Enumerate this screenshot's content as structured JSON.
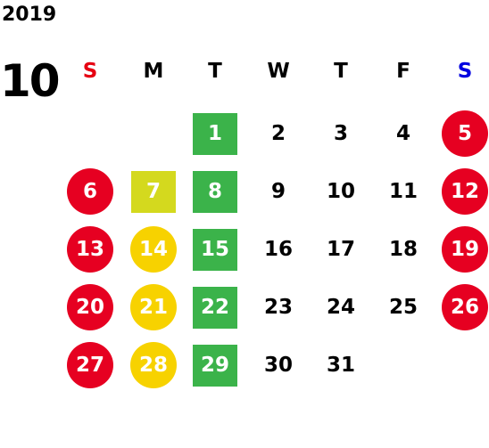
{
  "year": "2019",
  "month": "10",
  "weekdays": [
    {
      "label": "S",
      "color": "#e60012"
    },
    {
      "label": "M",
      "color": "#000000"
    },
    {
      "label": "T",
      "color": "#000000"
    },
    {
      "label": "W",
      "color": "#000000"
    },
    {
      "label": "T",
      "color": "#000000"
    },
    {
      "label": "F",
      "color": "#000000"
    },
    {
      "label": "S",
      "color": "#0000e0"
    }
  ],
  "weeks": [
    [
      null,
      null,
      {
        "day": "1",
        "shape": "square",
        "color": "#3bb34a"
      },
      {
        "day": "2"
      },
      {
        "day": "3"
      },
      {
        "day": "4"
      },
      {
        "day": "5",
        "shape": "circle",
        "color": "#e60021"
      }
    ],
    [
      {
        "day": "6",
        "shape": "circle",
        "color": "#e60021"
      },
      {
        "day": "7",
        "shape": "square",
        "color": "#d4d91e"
      },
      {
        "day": "8",
        "shape": "square",
        "color": "#3bb34a"
      },
      {
        "day": "9"
      },
      {
        "day": "10"
      },
      {
        "day": "11"
      },
      {
        "day": "12",
        "shape": "circle",
        "color": "#e60021"
      }
    ],
    [
      {
        "day": "13",
        "shape": "circle",
        "color": "#e60021"
      },
      {
        "day": "14",
        "shape": "circle",
        "color": "#f7d200"
      },
      {
        "day": "15",
        "shape": "square",
        "color": "#3bb34a"
      },
      {
        "day": "16"
      },
      {
        "day": "17"
      },
      {
        "day": "18"
      },
      {
        "day": "19",
        "shape": "circle",
        "color": "#e60021"
      }
    ],
    [
      {
        "day": "20",
        "shape": "circle",
        "color": "#e60021"
      },
      {
        "day": "21",
        "shape": "circle",
        "color": "#f7d200"
      },
      {
        "day": "22",
        "shape": "square",
        "color": "#3bb34a"
      },
      {
        "day": "23"
      },
      {
        "day": "24"
      },
      {
        "day": "25"
      },
      {
        "day": "26",
        "shape": "circle",
        "color": "#e60021"
      }
    ],
    [
      {
        "day": "27",
        "shape": "circle",
        "color": "#e60021"
      },
      {
        "day": "28",
        "shape": "circle",
        "color": "#f7d200"
      },
      {
        "day": "29",
        "shape": "square",
        "color": "#3bb34a"
      },
      {
        "day": "30"
      },
      {
        "day": "31"
      },
      null,
      null
    ]
  ]
}
